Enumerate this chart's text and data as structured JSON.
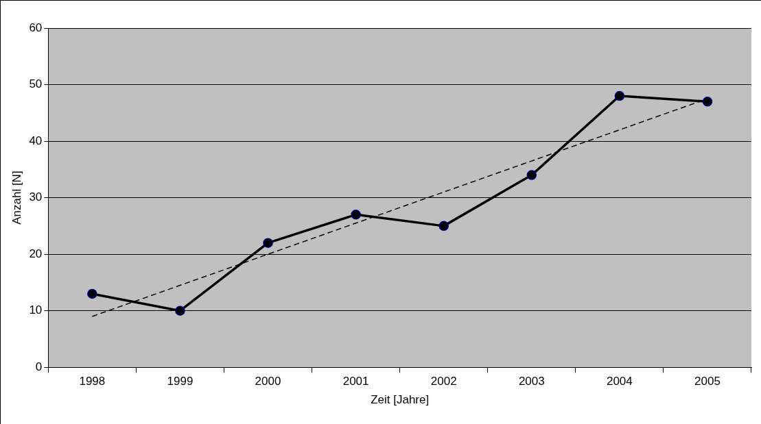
{
  "chart_data": {
    "type": "line",
    "xlabel": "Zeit [Jahre]",
    "ylabel": "Anzahl [N]",
    "categories": [
      "1998",
      "1999",
      "2000",
      "2001",
      "2002",
      "2003",
      "2004",
      "2005"
    ],
    "series": [
      {
        "color": "#000000",
        "values": [
          13,
          10,
          22,
          27,
          25,
          34,
          48,
          47
        ],
        "marker": "circle"
      },
      {
        "type": "line",
        "color": "#000000",
        "values": [
          9,
          14.5,
          20,
          25.5,
          31,
          36.5,
          42,
          47.5
        ],
        "line_style": "dashed",
        "marker": "none"
      }
    ],
    "ylim": [
      0,
      60
    ],
    "yticks": [
      0,
      10,
      20,
      30,
      40,
      50,
      60
    ],
    "grid": "y",
    "legend": false
  }
}
